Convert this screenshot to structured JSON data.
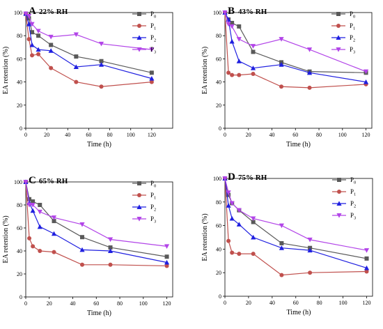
{
  "figure": {
    "panels_count": 4
  },
  "chart_data": [
    {
      "type": "line",
      "panel_letter": "A",
      "title": "22% RH",
      "xlabel": "Time (h)",
      "ylabel": "EA retention (%)",
      "xlim": [
        0,
        140
      ],
      "ylim": [
        0,
        100
      ],
      "xticks": [
        0,
        20,
        40,
        60,
        80,
        100,
        120
      ],
      "yticks": [
        0,
        20,
        40,
        60,
        80,
        100
      ],
      "legend_position": "top-right",
      "series": [
        {
          "name": "P",
          "sub": "0",
          "color": "#595959",
          "marker": "square",
          "x": [
            0,
            3,
            6,
            12,
            24,
            48,
            72,
            120
          ],
          "y": [
            99,
            95,
            83,
            80,
            72,
            62,
            58,
            48
          ]
        },
        {
          "name": "P",
          "sub": "1",
          "color": "#c0504d",
          "marker": "circle",
          "x": [
            0,
            3,
            6,
            12,
            24,
            48,
            72,
            120
          ],
          "y": [
            99,
            77,
            63,
            64,
            52,
            40,
            36,
            40
          ]
        },
        {
          "name": "P",
          "sub": "2",
          "color": "#1f1fe0",
          "marker": "triangle-up",
          "x": [
            0,
            3,
            6,
            12,
            24,
            48,
            72,
            120
          ],
          "y": [
            99,
            90,
            72,
            68,
            67,
            53,
            55,
            43
          ]
        },
        {
          "name": "P",
          "sub": "3",
          "color": "#b244e8",
          "marker": "triangle-down",
          "x": [
            0,
            3,
            6,
            12,
            24,
            48,
            72,
            120
          ],
          "y": [
            99,
            97,
            90,
            84,
            79,
            81,
            73,
            68
          ]
        }
      ]
    },
    {
      "type": "line",
      "panel_letter": "B",
      "title": "43% RH",
      "xlabel": "Time (h)",
      "ylabel": "EA retention (%)",
      "xlim": [
        0,
        125
      ],
      "ylim": [
        0,
        100
      ],
      "xticks": [
        0,
        20,
        40,
        60,
        80,
        100,
        120
      ],
      "yticks": [
        0,
        20,
        40,
        60,
        80,
        100
      ],
      "legend_position": "top-right",
      "series": [
        {
          "name": "P",
          "sub": "0",
          "color": "#595959",
          "marker": "square",
          "x": [
            0,
            3,
            6,
            12,
            24,
            48,
            72,
            120
          ],
          "y": [
            100,
            94,
            91,
            88,
            66,
            57,
            49,
            48
          ]
        },
        {
          "name": "P",
          "sub": "1",
          "color": "#c0504d",
          "marker": "circle",
          "x": [
            0,
            3,
            6,
            12,
            24,
            48,
            72,
            120
          ],
          "y": [
            100,
            48,
            46,
            46,
            47,
            36,
            35,
            38
          ]
        },
        {
          "name": "P",
          "sub": "2",
          "color": "#1f1fe0",
          "marker": "triangle-up",
          "x": [
            0,
            3,
            6,
            12,
            24,
            48,
            72,
            120
          ],
          "y": [
            100,
            94,
            75,
            58,
            52,
            55,
            48,
            40
          ]
        },
        {
          "name": "P",
          "sub": "3",
          "color": "#b244e8",
          "marker": "triangle-down",
          "x": [
            0,
            3,
            6,
            12,
            24,
            48,
            72,
            120
          ],
          "y": [
            100,
            90,
            88,
            77,
            71,
            77,
            68,
            49
          ]
        }
      ]
    },
    {
      "type": "line",
      "panel_letter": "C",
      "title": "65% RH",
      "xlabel": "Time (h)",
      "ylabel": "EA retention (%)",
      "xlim": [
        0,
        125
      ],
      "ylim": [
        0,
        100
      ],
      "xticks": [
        0,
        20,
        40,
        60,
        80,
        100,
        120
      ],
      "yticks": [
        0,
        20,
        40,
        60,
        80,
        100
      ],
      "legend_position": "top-right",
      "series": [
        {
          "name": "P",
          "sub": "0",
          "color": "#595959",
          "marker": "square",
          "x": [
            0,
            3,
            6,
            12,
            24,
            48,
            72,
            120
          ],
          "y": [
            100,
            85,
            83,
            80,
            66,
            52,
            43,
            35
          ]
        },
        {
          "name": "P",
          "sub": "1",
          "color": "#c0504d",
          "marker": "circle",
          "x": [
            0,
            3,
            6,
            12,
            24,
            48,
            72,
            120
          ],
          "y": [
            100,
            51,
            44,
            40,
            39,
            28,
            28,
            27
          ]
        },
        {
          "name": "P",
          "sub": "2",
          "color": "#1f1fe0",
          "marker": "triangle-up",
          "x": [
            0,
            3,
            6,
            12,
            24,
            48,
            72,
            120
          ],
          "y": [
            100,
            82,
            75,
            61,
            55,
            41,
            40,
            30
          ]
        },
        {
          "name": "P",
          "sub": "3",
          "color": "#b244e8",
          "marker": "triangle-down",
          "x": [
            0,
            3,
            6,
            12,
            24,
            48,
            72,
            120
          ],
          "y": [
            100,
            80,
            80,
            74,
            69,
            63,
            50,
            44
          ]
        }
      ]
    },
    {
      "type": "line",
      "panel_letter": "D",
      "title": "75% RH",
      "xlabel": "Time (h)",
      "ylabel": "EA retention (%)",
      "xlim": [
        0,
        125
      ],
      "ylim": [
        0,
        100
      ],
      "xticks": [
        0,
        20,
        40,
        60,
        80,
        100,
        120
      ],
      "yticks": [
        0,
        20,
        40,
        60,
        80,
        100
      ],
      "legend_position": "top-right",
      "series": [
        {
          "name": "P",
          "sub": "0",
          "color": "#595959",
          "marker": "square",
          "x": [
            0,
            3,
            6,
            12,
            24,
            48,
            72,
            120
          ],
          "y": [
            100,
            86,
            79,
            73,
            63,
            45,
            41,
            32
          ]
        },
        {
          "name": "P",
          "sub": "1",
          "color": "#c0504d",
          "marker": "circle",
          "x": [
            0,
            3,
            6,
            12,
            24,
            48,
            72,
            120
          ],
          "y": [
            100,
            47,
            37,
            36,
            36,
            18,
            20,
            21
          ]
        },
        {
          "name": "P",
          "sub": "2",
          "color": "#1f1fe0",
          "marker": "triangle-up",
          "x": [
            0,
            3,
            6,
            12,
            24,
            48,
            72,
            120
          ],
          "y": [
            100,
            77,
            66,
            61,
            50,
            41,
            39,
            24
          ]
        },
        {
          "name": "P",
          "sub": "3",
          "color": "#b244e8",
          "marker": "triangle-down",
          "x": [
            0,
            3,
            6,
            12,
            24,
            48,
            72,
            120
          ],
          "y": [
            100,
            88,
            79,
            73,
            66,
            60,
            48,
            39
          ]
        }
      ]
    }
  ]
}
